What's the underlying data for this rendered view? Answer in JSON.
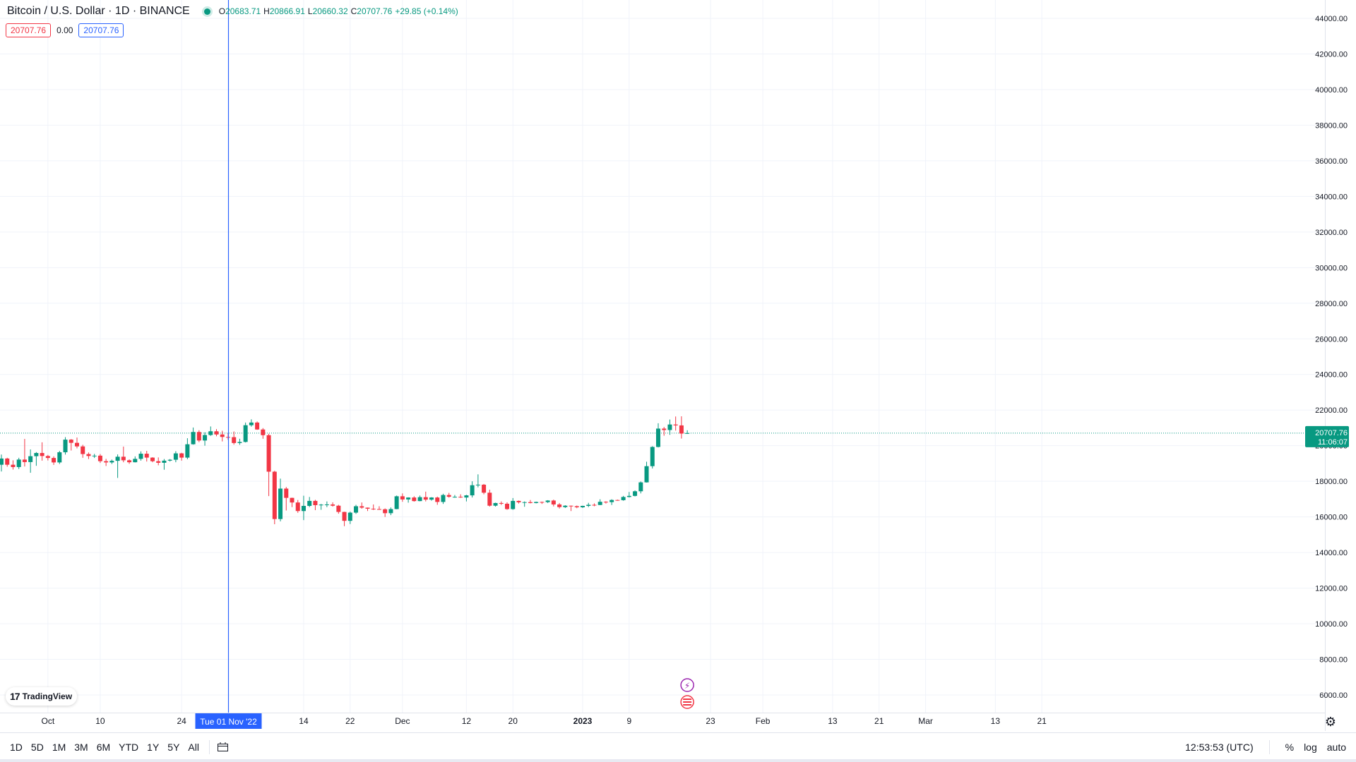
{
  "legend": {
    "title": "Bitcoin / U.S. Dollar · 1D · BINANCE",
    "o_label": "O",
    "o_value": "20683.71",
    "h_label": "H",
    "h_value": "20866.91",
    "l_label": "L",
    "l_value": "20660.32",
    "c_label": "C",
    "c_value": "20707.76",
    "change": "+29.85 (+0.14%)"
  },
  "price_boxes": {
    "bid": "20707.76",
    "spread": "0.00",
    "ask": "20707.76"
  },
  "last_price_label": {
    "price": "20707.76",
    "countdown": "11:06:07"
  },
  "crosshair_date": "Tue 01 Nov '22",
  "branding": "TradingView",
  "bottom_bar": {
    "ranges": [
      "1D",
      "5D",
      "1M",
      "3M",
      "6M",
      "YTD",
      "1Y",
      "5Y",
      "All"
    ],
    "time": "12:53:53 (UTC)",
    "percent": "%",
    "log": "log",
    "auto": "auto"
  },
  "colors": {
    "up": "#089981",
    "down": "#f23645",
    "crosshair": "#2962ff",
    "grid": "#f0f3fa"
  },
  "chart_data": {
    "type": "candlestick",
    "title": "Bitcoin / U.S. Dollar · 1D · BINANCE",
    "ylim": [
      5000,
      45000
    ],
    "y_ticks": [
      "44000.00",
      "42000.00",
      "40000.00",
      "38000.00",
      "36000.00",
      "34000.00",
      "32000.00",
      "30000.00",
      "28000.00",
      "26000.00",
      "24000.00",
      "22000.00",
      "20000.00",
      "18000.00",
      "16000.00",
      "14000.00",
      "12000.00",
      "10000.00",
      "8000.00",
      "6000.00"
    ],
    "x_tick_labels": [
      {
        "date": "2022-10-01",
        "label": "Oct"
      },
      {
        "date": "2022-10-10",
        "label": "10"
      },
      {
        "date": "2022-10-24",
        "label": "24"
      },
      {
        "date": "2022-11-14",
        "label": "14"
      },
      {
        "date": "2022-11-22",
        "label": "22"
      },
      {
        "date": "2022-12-01",
        "label": "Dec"
      },
      {
        "date": "2022-12-12",
        "label": "12"
      },
      {
        "date": "2022-12-20",
        "label": "20"
      },
      {
        "date": "2023-01-01",
        "label": "2023"
      },
      {
        "date": "2023-01-09",
        "label": "9"
      },
      {
        "date": "2023-01-23",
        "label": "23"
      },
      {
        "date": "2023-02-01",
        "label": "Feb"
      },
      {
        "date": "2023-02-13",
        "label": "13"
      },
      {
        "date": "2023-02-21",
        "label": "21"
      },
      {
        "date": "2023-03-01",
        "label": "Mar"
      },
      {
        "date": "2023-03-13",
        "label": "13"
      },
      {
        "date": "2023-03-21",
        "label": "21"
      }
    ],
    "x_start": "2022-09-23",
    "x_end": "2023-03-27",
    "last_price": 20707.76,
    "crosshair_x": "2022-11-01",
    "candles": [
      [
        "2022-09-23",
        18930,
        19500,
        18550,
        19280
      ],
      [
        "2022-09-24",
        19280,
        19320,
        18820,
        18930
      ],
      [
        "2022-09-25",
        18930,
        19180,
        18660,
        18800
      ],
      [
        "2022-09-26",
        18800,
        19320,
        18690,
        19220
      ],
      [
        "2022-09-27",
        19220,
        20380,
        18830,
        19080
      ],
      [
        "2022-09-28",
        19080,
        19790,
        18480,
        19410
      ],
      [
        "2022-09-29",
        19410,
        19640,
        18870,
        19590
      ],
      [
        "2022-09-30",
        19590,
        20190,
        19160,
        19420
      ],
      [
        "2022-10-01",
        19420,
        19480,
        19170,
        19310
      ],
      [
        "2022-10-02",
        19310,
        19400,
        18920,
        19060
      ],
      [
        "2022-10-03",
        19060,
        19710,
        18970,
        19630
      ],
      [
        "2022-10-04",
        19630,
        20480,
        19500,
        20340
      ],
      [
        "2022-10-05",
        20340,
        20370,
        19730,
        20160
      ],
      [
        "2022-10-06",
        20160,
        20460,
        19850,
        19960
      ],
      [
        "2022-10-07",
        19960,
        20050,
        19320,
        19530
      ],
      [
        "2022-10-08",
        19530,
        19620,
        19250,
        19420
      ],
      [
        "2022-10-09",
        19420,
        19540,
        19310,
        19440
      ],
      [
        "2022-10-10",
        19440,
        19530,
        19030,
        19130
      ],
      [
        "2022-10-11",
        19130,
        19260,
        18860,
        19060
      ],
      [
        "2022-10-12",
        19060,
        19220,
        18970,
        19150
      ],
      [
        "2022-10-13",
        19150,
        19510,
        18190,
        19380
      ],
      [
        "2022-10-14",
        19380,
        19950,
        19070,
        19180
      ],
      [
        "2022-10-15",
        19180,
        19230,
        18980,
        19070
      ],
      [
        "2022-10-16",
        19070,
        19400,
        19060,
        19260
      ],
      [
        "2022-10-17",
        19260,
        19680,
        19160,
        19550
      ],
      [
        "2022-10-18",
        19550,
        19710,
        19110,
        19330
      ],
      [
        "2022-10-19",
        19330,
        19350,
        19070,
        19130
      ],
      [
        "2022-10-20",
        19130,
        19340,
        18900,
        19040
      ],
      [
        "2022-10-21",
        19040,
        19250,
        18650,
        19160
      ],
      [
        "2022-10-22",
        19160,
        19250,
        19110,
        19210
      ],
      [
        "2022-10-23",
        19210,
        19690,
        19070,
        19570
      ],
      [
        "2022-10-24",
        19570,
        19600,
        19160,
        19330
      ],
      [
        "2022-10-25",
        19330,
        20420,
        19240,
        20080
      ],
      [
        "2022-10-26",
        20080,
        21020,
        20060,
        20770
      ],
      [
        "2022-10-27",
        20770,
        20870,
        20200,
        20290
      ],
      [
        "2022-10-28",
        20290,
        20750,
        20000,
        20600
      ],
      [
        "2022-10-29",
        20600,
        21080,
        20550,
        20810
      ],
      [
        "2022-10-30",
        20810,
        20930,
        20530,
        20630
      ],
      [
        "2022-10-31",
        20630,
        20840,
        20240,
        20490
      ],
      [
        "2022-11-01",
        20490,
        20700,
        20330,
        20480
      ],
      [
        "2022-11-02",
        20480,
        20800,
        20060,
        20150
      ],
      [
        "2022-11-03",
        20150,
        20390,
        20050,
        20210
      ],
      [
        "2022-11-04",
        20210,
        21300,
        20180,
        21150
      ],
      [
        "2022-11-05",
        21150,
        21480,
        21070,
        21300
      ],
      [
        "2022-11-06",
        21300,
        21360,
        20890,
        20910
      ],
      [
        "2022-11-07",
        20910,
        20990,
        20390,
        20590
      ],
      [
        "2022-11-08",
        20590,
        20670,
        17170,
        18540
      ],
      [
        "2022-11-09",
        18540,
        18590,
        15590,
        15880
      ],
      [
        "2022-11-10",
        15880,
        18150,
        15750,
        17590
      ],
      [
        "2022-11-11",
        17590,
        17680,
        16360,
        17070
      ],
      [
        "2022-11-12",
        17070,
        17080,
        16550,
        16810
      ],
      [
        "2022-11-13",
        16810,
        16950,
        16230,
        16330
      ],
      [
        "2022-11-14",
        16330,
        17190,
        15820,
        16620
      ],
      [
        "2022-11-15",
        16620,
        17120,
        16550,
        16900
      ],
      [
        "2022-11-16",
        16900,
        16960,
        16380,
        16660
      ],
      [
        "2022-11-17",
        16660,
        16730,
        16400,
        16690
      ],
      [
        "2022-11-18",
        16690,
        16870,
        16550,
        16700
      ],
      [
        "2022-11-19",
        16700,
        16820,
        16580,
        16630
      ],
      [
        "2022-11-20",
        16630,
        16680,
        16180,
        16280
      ],
      [
        "2022-11-21",
        16280,
        16290,
        15480,
        15780
      ],
      [
        "2022-11-22",
        15780,
        16300,
        15600,
        16240
      ],
      [
        "2022-11-23",
        16240,
        16680,
        16170,
        16600
      ],
      [
        "2022-11-24",
        16600,
        16810,
        16460,
        16520
      ],
      [
        "2022-11-25",
        16520,
        16530,
        16330,
        16460
      ],
      [
        "2022-11-26",
        16460,
        16700,
        16390,
        16440
      ],
      [
        "2022-11-27",
        16440,
        16600,
        16400,
        16430
      ],
      [
        "2022-11-28",
        16430,
        16480,
        16000,
        16210
      ],
      [
        "2022-11-29",
        16210,
        16530,
        16100,
        16440
      ],
      [
        "2022-11-30",
        16440,
        17200,
        16430,
        17160
      ],
      [
        "2022-12-01",
        17160,
        17320,
        16850,
        16980
      ],
      [
        "2022-12-02",
        16980,
        17100,
        16800,
        17090
      ],
      [
        "2022-12-03",
        17090,
        17160,
        16860,
        16890
      ],
      [
        "2022-12-04",
        16890,
        17200,
        16880,
        17110
      ],
      [
        "2022-12-05",
        17110,
        17420,
        16870,
        16970
      ],
      [
        "2022-12-06",
        16970,
        17110,
        16910,
        17090
      ],
      [
        "2022-12-07",
        17090,
        17140,
        16680,
        16840
      ],
      [
        "2022-12-08",
        16840,
        17300,
        16730,
        17230
      ],
      [
        "2022-12-09",
        17230,
        17350,
        17080,
        17130
      ],
      [
        "2022-12-10",
        17130,
        17230,
        17080,
        17130
      ],
      [
        "2022-12-11",
        17130,
        17270,
        17070,
        17090
      ],
      [
        "2022-12-12",
        17090,
        17240,
        16870,
        17210
      ],
      [
        "2022-12-13",
        17210,
        18000,
        17090,
        17780
      ],
      [
        "2022-12-14",
        17780,
        18390,
        17660,
        17810
      ],
      [
        "2022-12-15",
        17810,
        17850,
        17270,
        17360
      ],
      [
        "2022-12-16",
        17360,
        17530,
        16580,
        16630
      ],
      [
        "2022-12-17",
        16630,
        16800,
        16580,
        16780
      ],
      [
        "2022-12-18",
        16780,
        16870,
        16670,
        16740
      ],
      [
        "2022-12-19",
        16740,
        16820,
        16400,
        16440
      ],
      [
        "2022-12-20",
        16440,
        17060,
        16400,
        16900
      ],
      [
        "2022-12-21",
        16900,
        16920,
        16750,
        16820
      ],
      [
        "2022-12-22",
        16820,
        16870,
        16570,
        16830
      ],
      [
        "2022-12-23",
        16830,
        16950,
        16760,
        16780
      ],
      [
        "2022-12-24",
        16780,
        16860,
        16760,
        16840
      ],
      [
        "2022-12-25",
        16840,
        16860,
        16730,
        16830
      ],
      [
        "2022-12-26",
        16830,
        16940,
        16780,
        16920
      ],
      [
        "2022-12-27",
        16920,
        16970,
        16590,
        16700
      ],
      [
        "2022-12-28",
        16700,
        16780,
        16470,
        16550
      ],
      [
        "2022-12-29",
        16550,
        16660,
        16500,
        16630
      ],
      [
        "2022-12-30",
        16630,
        16640,
        16330,
        16600
      ],
      [
        "2022-12-31",
        16600,
        16640,
        16490,
        16540
      ],
      [
        "2023-01-01",
        16540,
        16630,
        16500,
        16620
      ],
      [
        "2023-01-02",
        16620,
        16790,
        16550,
        16680
      ],
      [
        "2023-01-03",
        16680,
        16760,
        16600,
        16670
      ],
      [
        "2023-01-04",
        16670,
        16990,
        16660,
        16850
      ],
      [
        "2023-01-05",
        16850,
        16880,
        16750,
        16830
      ],
      [
        "2023-01-06",
        16830,
        16990,
        16670,
        16950
      ],
      [
        "2023-01-07",
        16950,
        16970,
        16910,
        16940
      ],
      [
        "2023-01-08",
        16940,
        17180,
        16910,
        17120
      ],
      [
        "2023-01-09",
        17120,
        17400,
        17090,
        17180
      ],
      [
        "2023-01-10",
        17180,
        17490,
        17150,
        17440
      ],
      [
        "2023-01-11",
        17440,
        17990,
        17320,
        17940
      ],
      [
        "2023-01-12",
        17940,
        19100,
        17930,
        18850
      ],
      [
        "2023-01-13",
        18850,
        19970,
        18720,
        19930
      ],
      [
        "2023-01-14",
        19930,
        21260,
        19900,
        20960
      ],
      [
        "2023-01-15",
        20960,
        21050,
        20560,
        20880
      ],
      [
        "2023-01-16",
        20880,
        21470,
        20610,
        21190
      ],
      [
        "2023-01-17",
        21190,
        21640,
        20850,
        21140
      ],
      [
        "2023-01-18",
        21140,
        21650,
        20400,
        20680
      ],
      [
        "2023-01-19",
        20683.71,
        20866.91,
        20660.32,
        20707.76
      ]
    ]
  }
}
